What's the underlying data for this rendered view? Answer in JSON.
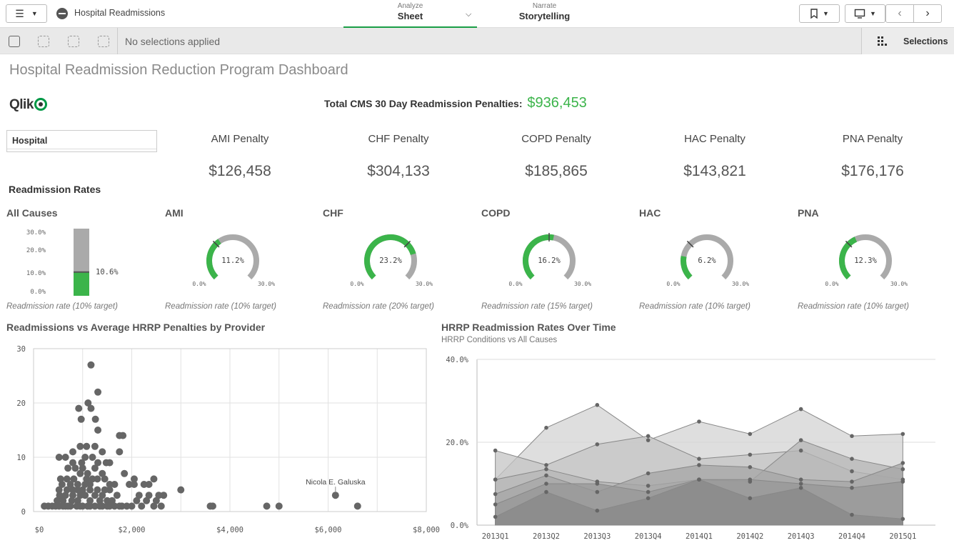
{
  "app": {
    "title": "Hospital Readmissions"
  },
  "nav": {
    "analyze_label": "Analyze",
    "sheet_label": "Sheet",
    "narrate_label": "Narrate",
    "storytelling_label": "Storytelling"
  },
  "selection_bar": {
    "status": "No selections applied",
    "selections_label": "Selections"
  },
  "dashboard": {
    "title": "Hospital Readmission Reduction Program Dashboard",
    "logo_text": "Qlik",
    "total_label": "Total CMS 30 Day Readmission Penalties:",
    "total_value": "$936,453",
    "filter_label": "Hospital",
    "kpis": [
      {
        "label": "AMI Penalty",
        "value": "$126,458"
      },
      {
        "label": "CHF Penalty",
        "value": "$304,133"
      },
      {
        "label": "COPD Penalty",
        "value": "$185,865"
      },
      {
        "label": "HAC Penalty",
        "value": "$143,821"
      },
      {
        "label": "PNA Penalty",
        "value": "$176,176"
      }
    ],
    "readmission_title": "Readmission Rates",
    "all_causes": {
      "title": "All Causes",
      "ticks": [
        "30.0%",
        "20.0%",
        "10.0%",
        "0.0%"
      ],
      "value": 10.6,
      "value_label": "10.6%",
      "footer": "Readmission rate (10% target)"
    },
    "gauges": [
      {
        "title": "AMI",
        "value": 11.2,
        "value_label": "11.2%",
        "target": 10,
        "min_label": "0.0%",
        "max_label": "30.0%",
        "footer": "Readmission rate (10% target)"
      },
      {
        "title": "CHF",
        "value": 23.2,
        "value_label": "23.2%",
        "target": 20,
        "min_label": "0.0%",
        "max_label": "30.0%",
        "footer": "Readmission rate (20% target)"
      },
      {
        "title": "COPD",
        "value": 16.2,
        "value_label": "16.2%",
        "target": 15,
        "min_label": "0.0%",
        "max_label": "30.0%",
        "footer": "Readmission rate (15% target)"
      },
      {
        "title": "HAC",
        "value": 6.2,
        "value_label": "6.2%",
        "target": 10,
        "min_label": "0.0%",
        "max_label": "30.0%",
        "footer": "Readmission rate (10% target)"
      },
      {
        "title": "PNA",
        "value": 12.3,
        "value_label": "12.3%",
        "target": 10,
        "min_label": "0.0%",
        "max_label": "30.0%",
        "footer": "Readmission rate (10% target)"
      }
    ],
    "colors": {
      "accent_green": "#3bb44a",
      "gauge_gray": "#aaaaaa",
      "point_gray": "#666666"
    }
  },
  "chart_data": [
    {
      "type": "scatter",
      "title": "Readmissions vs Average HRRP Penalties by Provider",
      "xlabel": "",
      "ylabel": "",
      "xlim": [
        0,
        8000
      ],
      "ylim": [
        0,
        30
      ],
      "x_ticks": [
        "$0",
        "$2,000",
        "$4,000",
        "$6,000",
        "$8,000"
      ],
      "y_ticks": [
        "0",
        "10",
        "20",
        "30"
      ],
      "annotation": {
        "label": "Nicola E. Galuska",
        "x": 6150,
        "y": 3
      },
      "points": [
        [
          1170,
          27
        ],
        [
          1310,
          22
        ],
        [
          920,
          19
        ],
        [
          1110,
          20
        ],
        [
          1170,
          19
        ],
        [
          970,
          17
        ],
        [
          1260,
          17
        ],
        [
          1310,
          15
        ],
        [
          1750,
          14
        ],
        [
          1820,
          14
        ],
        [
          800,
          11
        ],
        [
          950,
          12
        ],
        [
          1080,
          12
        ],
        [
          1250,
          12
        ],
        [
          1400,
          11
        ],
        [
          1750,
          11
        ],
        [
          520,
          10
        ],
        [
          650,
          10
        ],
        [
          800,
          9
        ],
        [
          980,
          9
        ],
        [
          1050,
          10
        ],
        [
          1200,
          10
        ],
        [
          1310,
          9
        ],
        [
          1480,
          9
        ],
        [
          1550,
          9
        ],
        [
          700,
          8
        ],
        [
          850,
          8
        ],
        [
          1000,
          8
        ],
        [
          1100,
          7
        ],
        [
          1250,
          8
        ],
        [
          1400,
          7
        ],
        [
          1850,
          7
        ],
        [
          2050,
          6
        ],
        [
          2450,
          6
        ],
        [
          550,
          6
        ],
        [
          680,
          6
        ],
        [
          820,
          6
        ],
        [
          950,
          7
        ],
        [
          1080,
          6
        ],
        [
          1200,
          6
        ],
        [
          1300,
          6
        ],
        [
          1450,
          6
        ],
        [
          580,
          5
        ],
        [
          750,
          5
        ],
        [
          900,
          5
        ],
        [
          1050,
          5
        ],
        [
          1150,
          5
        ],
        [
          1550,
          5
        ],
        [
          1650,
          5
        ],
        [
          1950,
          5
        ],
        [
          2050,
          5
        ],
        [
          2250,
          5
        ],
        [
          2350,
          5
        ],
        [
          520,
          4
        ],
        [
          680,
          4
        ],
        [
          800,
          4
        ],
        [
          900,
          4
        ],
        [
          1000,
          4
        ],
        [
          1150,
          4
        ],
        [
          1300,
          4
        ],
        [
          1450,
          4
        ],
        [
          1550,
          4
        ],
        [
          3000,
          4
        ],
        [
          530,
          3
        ],
        [
          650,
          3
        ],
        [
          800,
          3
        ],
        [
          950,
          3
        ],
        [
          1050,
          3
        ],
        [
          1250,
          3
        ],
        [
          1400,
          3
        ],
        [
          1700,
          3
        ],
        [
          2150,
          3
        ],
        [
          2350,
          3
        ],
        [
          2550,
          3
        ],
        [
          2650,
          3
        ],
        [
          480,
          2
        ],
        [
          600,
          2
        ],
        [
          780,
          2
        ],
        [
          900,
          2
        ],
        [
          1150,
          2
        ],
        [
          1350,
          2
        ],
        [
          1500,
          2
        ],
        [
          1600,
          2
        ],
        [
          2100,
          2
        ],
        [
          2300,
          2
        ],
        [
          2500,
          2
        ],
        [
          380,
          1
        ],
        [
          520,
          1
        ],
        [
          650,
          1
        ],
        [
          750,
          1
        ],
        [
          880,
          1
        ],
        [
          1000,
          1
        ],
        [
          1150,
          1
        ],
        [
          1350,
          1
        ],
        [
          1500,
          1
        ],
        [
          1650,
          1
        ],
        [
          1800,
          1
        ],
        [
          2000,
          1
        ],
        [
          2200,
          1
        ],
        [
          2450,
          1
        ],
        [
          2600,
          1
        ],
        [
          3600,
          1
        ],
        [
          3650,
          1
        ],
        [
          4750,
          1
        ],
        [
          5000,
          1
        ],
        [
          6150,
          3
        ],
        [
          6600,
          1
        ],
        [
          220,
          1
        ],
        [
          300,
          1
        ],
        [
          450,
          1
        ],
        [
          600,
          1
        ],
        [
          700,
          1
        ],
        [
          950,
          1
        ],
        [
          1100,
          1
        ],
        [
          1250,
          1
        ],
        [
          1400,
          1
        ],
        [
          1550,
          1
        ],
        [
          1750,
          1
        ],
        [
          1900,
          1
        ]
      ]
    },
    {
      "type": "area",
      "title": "HRRP Readmission Rates Over Time",
      "subtitle": "HRRP Conditions vs All Causes",
      "categories": [
        "2013Q1",
        "2013Q2",
        "2013Q3",
        "2013Q4",
        "2014Q1",
        "2014Q2",
        "2014Q3",
        "2014Q4",
        "2015Q1"
      ],
      "y_ticks": [
        "0.0%",
        "20.0%",
        "40.0%"
      ],
      "ylim": [
        0,
        40
      ],
      "series": [
        {
          "values": [
            11,
            23.5,
            29,
            20.5,
            25,
            22,
            28,
            21.5,
            22
          ]
        },
        {
          "values": [
            18,
            14.5,
            19.5,
            21.5,
            16,
            17,
            18,
            13,
            11
          ]
        },
        {
          "values": [
            11,
            13.5,
            10.5,
            9.5,
            11,
            10.5,
            20.5,
            16,
            13.5
          ]
        },
        {
          "values": [
            7.5,
            12,
            8,
            12.5,
            14.5,
            14,
            11,
            10.5,
            15
          ]
        },
        {
          "values": [
            5,
            10,
            10,
            8,
            11,
            11,
            10,
            9,
            10.5
          ]
        },
        {
          "values": [
            2,
            8,
            3.5,
            6.5,
            11,
            6.5,
            9,
            2.5,
            1.5
          ]
        }
      ]
    }
  ]
}
